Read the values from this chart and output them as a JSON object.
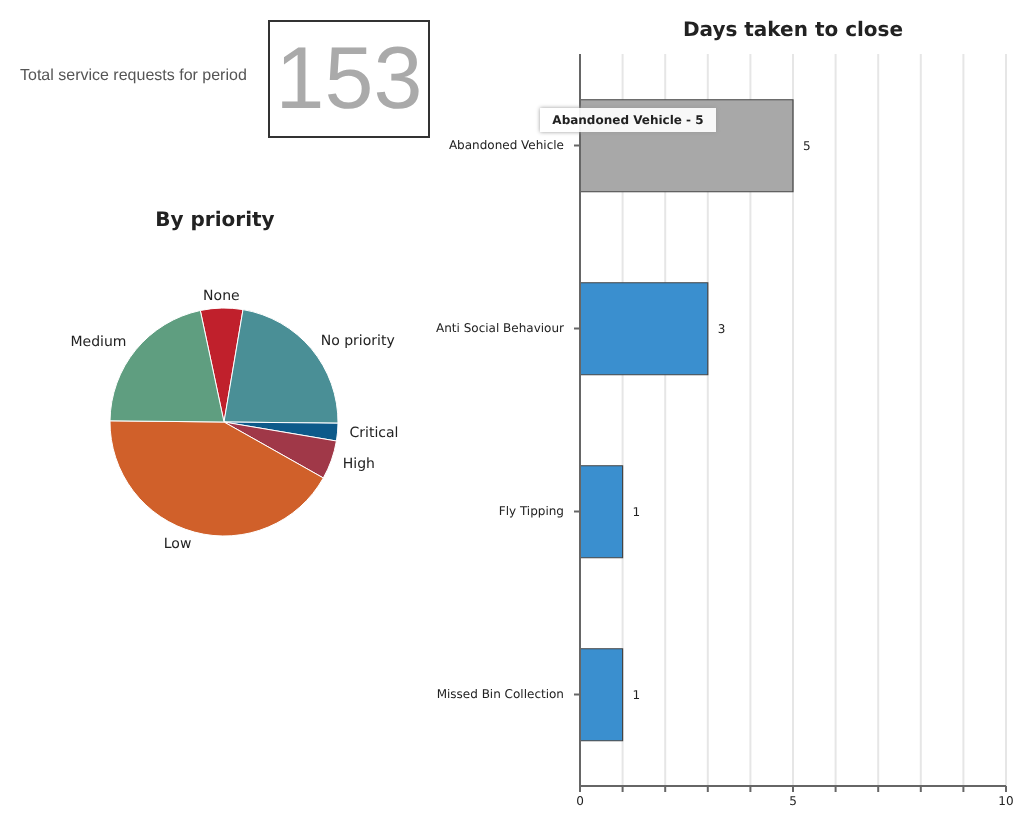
{
  "chart_data": [
    {
      "type": "other",
      "title": "Total service requests for period",
      "annotations": [
        "153"
      ]
    },
    {
      "type": "pie",
      "title": "By priority",
      "categories": [
        "None",
        "No priority",
        "Critical",
        "High",
        "Low",
        "Medium"
      ],
      "values": [
        6,
        22.5,
        2.5,
        5.5,
        42,
        21.5
      ],
      "colors": [
        "#c0202c",
        "#4a8f96",
        "#0d5a8a",
        "#a03848",
        "#d0602a",
        "#5f9e80"
      ]
    },
    {
      "type": "bar",
      "orientation": "horizontal",
      "title": "Days taken to close",
      "categories": [
        "Abandoned Vehicle",
        "Anti Social Behaviour",
        "Fly Tipping",
        "Missed Bin Collection"
      ],
      "values": [
        5,
        3,
        1,
        1
      ],
      "colors": [
        "#a8a8a8",
        "#3a8fcf",
        "#3a8fcf",
        "#3a8fcf"
      ],
      "xlim": [
        0,
        10
      ],
      "xticks": [
        0,
        {
          "value": 1,
          "label": null
        },
        {
          "value": 2,
          "label": null
        },
        {
          "value": 3,
          "label": null
        },
        {
          "value": 4,
          "label": null
        },
        5,
        {
          "value": 6,
          "label": null
        },
        {
          "value": 7,
          "label": null
        },
        {
          "value": 8,
          "label": null
        },
        {
          "value": 9,
          "label": null
        },
        10
      ],
      "grid": "x",
      "data_labels": true,
      "annotations": [
        "Abandoned Vehicle - 5"
      ]
    }
  ]
}
